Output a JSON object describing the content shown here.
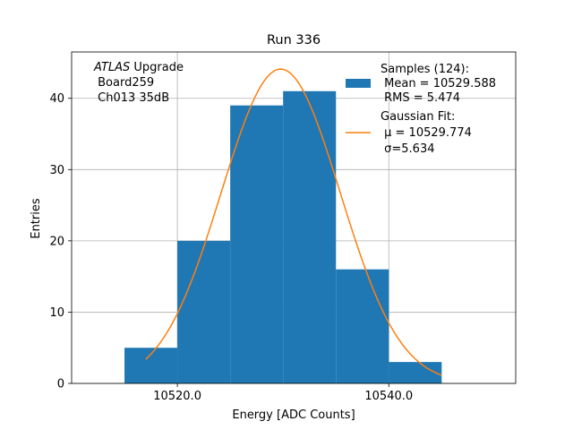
{
  "chart_data": {
    "type": "bar",
    "title": "Run 336",
    "xlabel": "Energy [ADC Counts]",
    "ylabel": "Entries",
    "xlim": [
      10510,
      10552
    ],
    "ylim": [
      0,
      46.5
    ],
    "grid": true,
    "xticks": [
      10520,
      10540
    ],
    "xtick_labels": [
      "10520.0",
      "10540.0"
    ],
    "yticks": [
      0,
      10,
      20,
      30,
      40
    ],
    "ytick_labels": [
      "0",
      "10",
      "20",
      "30",
      "40"
    ],
    "annotation": {
      "line1_italic": "ATLAS",
      "line1_rest": " Upgrade",
      "line2": " Board259",
      "line3": " Ch013 35dB"
    },
    "histogram": {
      "name_lines": [
        "Samples (124):",
        " Mean = 10529.588",
        " RMS = 5.474"
      ],
      "color": "#1f77b4",
      "bins": [
        {
          "x0": 10515,
          "x1": 10520,
          "count": 5
        },
        {
          "x0": 10520,
          "x1": 10525,
          "count": 20
        },
        {
          "x0": 10525,
          "x1": 10530,
          "count": 39
        },
        {
          "x0": 10530,
          "x1": 10535,
          "count": 41
        },
        {
          "x0": 10535,
          "x1": 10540,
          "count": 16
        },
        {
          "x0": 10540,
          "x1": 10545,
          "count": 3
        }
      ]
    },
    "fit": {
      "name_lines": [
        "Gaussian Fit:",
        " μ = 10529.774",
        " σ=5.634"
      ],
      "color": "#ff7f0e",
      "mu": 10529.774,
      "sigma": 5.634,
      "amplitude": 44.1,
      "x_start": 10517,
      "x_end": 10545
    },
    "legend_position": "upper-right"
  }
}
